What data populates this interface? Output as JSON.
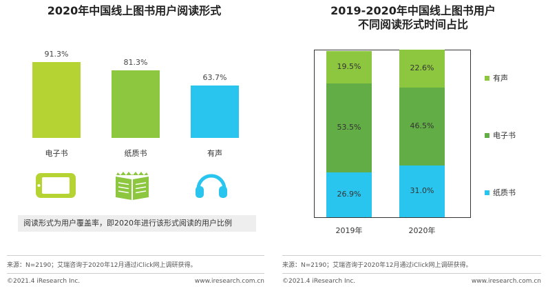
{
  "left": {
    "title": "2020年中国线上图书用户阅读形式",
    "note": "阅读形式为用户覆盖率，即2020年进行该形式阅读的用户比例",
    "source": "来源：N=2190；艾瑞咨询于2020年12月通过iClick网上调研获得。",
    "copyright": "©2021.4 iResearch Inc.",
    "website": "www.iresearch.com.cn",
    "icons": [
      "tablet-icon",
      "book-icon",
      "headphones-icon"
    ]
  },
  "right": {
    "title_line1": "2019-2020年中国线上图书用户",
    "title_line2": "不同阅读形式时间占比",
    "source": "来源：N=2190；艾瑞咨询于2020年12月通过iClick网上调研获得。",
    "copyright": "©2021.4 iResearch Inc.",
    "website": "www.iresearch.com.cn"
  },
  "chart_data": [
    {
      "type": "bar",
      "title": "2020年中国线上图书用户阅读形式",
      "categories": [
        "电子书",
        "纸质书",
        "有声"
      ],
      "values": [
        91.3,
        81.3,
        63.7
      ],
      "value_labels": [
        "91.3%",
        "81.3%",
        "63.7%"
      ],
      "colors": [
        "#b5d333",
        "#8dc63f",
        "#29c5ee"
      ],
      "ylim": [
        0,
        100
      ]
    },
    {
      "type": "bar",
      "stacked": true,
      "percent_stacked": true,
      "title": "2019-2020年中国线上图书用户不同阅读形式时间占比",
      "categories": [
        "2019年",
        "2020年"
      ],
      "series": [
        {
          "name": "纸质书",
          "color": "#29c5ee",
          "values": [
            26.9,
            31.0
          ],
          "labels": [
            "26.9%",
            "31.0%"
          ]
        },
        {
          "name": "电子书",
          "color": "#62ad45",
          "values": [
            53.5,
            46.5
          ],
          "labels": [
            "53.5%",
            "46.5%"
          ]
        },
        {
          "name": "有声",
          "color": "#8dc63f",
          "values": [
            19.5,
            22.6
          ],
          "labels": [
            "19.5%",
            "22.6%"
          ]
        }
      ],
      "legend": {
        "placement": "right",
        "order": [
          "有声",
          "电子书",
          "纸质书"
        ]
      }
    }
  ]
}
